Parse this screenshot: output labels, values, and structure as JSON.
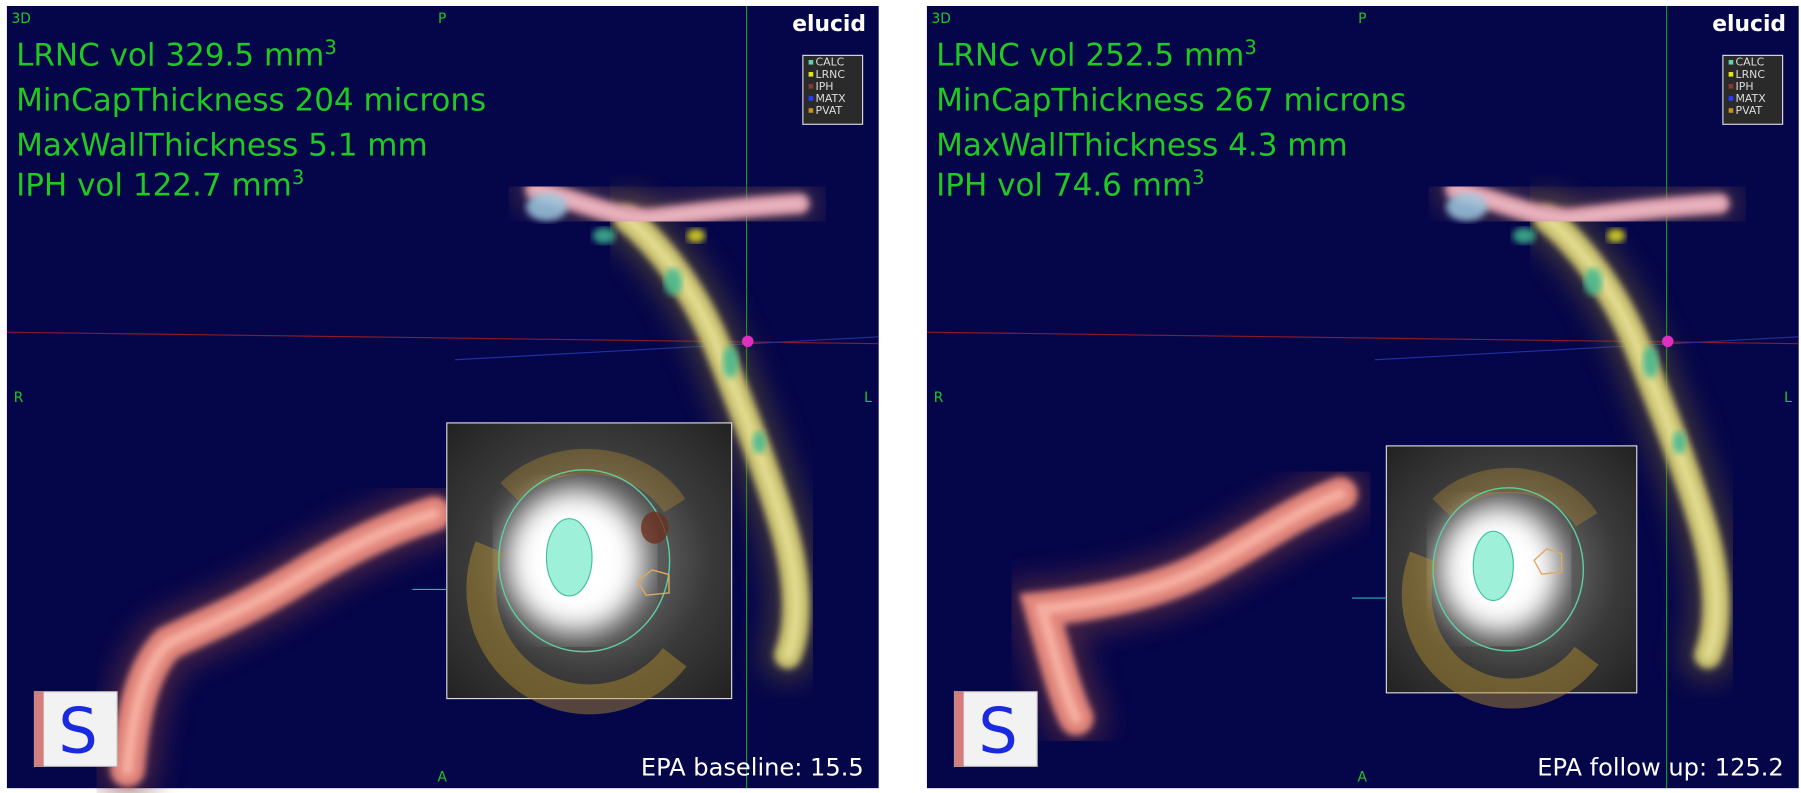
{
  "panels": [
    {
      "view_label": "3D",
      "orientation": {
        "top": "P",
        "left": "R",
        "right": "L",
        "bottom": "A"
      },
      "logo": "elucid",
      "legend": [
        {
          "label": "CALC",
          "color": "#5fd0b0"
        },
        {
          "label": "LRNC",
          "color": "#e6e21e"
        },
        {
          "label": "IPH",
          "color": "#8b3a2a"
        },
        {
          "label": "MATX",
          "color": "#2a3cff"
        },
        {
          "label": "PVAT",
          "color": "#c8901e"
        }
      ],
      "metrics": [
        {
          "text": "LRNC vol 329.5 mm",
          "sup": "3"
        },
        {
          "text": "MinCapThickness 204 microns"
        },
        {
          "text": "MaxWallThickness 5.1 mm"
        },
        {
          "text": "IPH vol 122.7 mm",
          "sup": "3"
        }
      ],
      "caption": "EPA baseline: 15.5",
      "cube_label": "S"
    },
    {
      "view_label": "3D",
      "orientation": {
        "top": "P",
        "left": "R",
        "right": "L",
        "bottom": "A"
      },
      "logo": "elucid",
      "legend": [
        {
          "label": "CALC",
          "color": "#5fd0b0"
        },
        {
          "label": "LRNC",
          "color": "#e6e21e"
        },
        {
          "label": "IPH",
          "color": "#8b3a2a"
        },
        {
          "label": "MATX",
          "color": "#2a3cff"
        },
        {
          "label": "PVAT",
          "color": "#c8901e"
        }
      ],
      "metrics": [
        {
          "text": "LRNC vol 252.5 mm",
          "sup": "3"
        },
        {
          "text": "MinCapThickness 267 microns"
        },
        {
          "text": "MaxWallThickness 4.3 mm"
        },
        {
          "text": "IPH vol 74.6 mm",
          "sup": "3"
        }
      ],
      "caption": "EPA follow up: 125.2",
      "cube_label": "S"
    }
  ]
}
